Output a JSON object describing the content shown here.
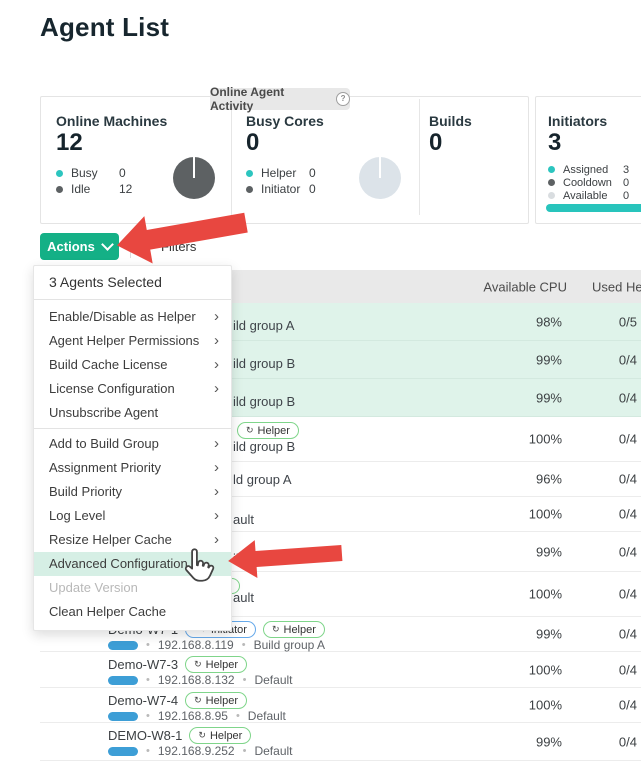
{
  "page": {
    "title": "Agent List"
  },
  "activity": {
    "tab_label": "Online Agent Activity",
    "cards": [
      {
        "title": "Online Machines",
        "value": "12",
        "legend": [
          {
            "label": "Busy",
            "value": "0",
            "color": "#2cc5bf"
          },
          {
            "label": "Idle",
            "value": "12",
            "color": "#5d6163"
          }
        ],
        "donut_color": "#5d6163"
      },
      {
        "title": "Busy Cores",
        "value": "0",
        "legend": [
          {
            "label": "Helper",
            "value": "0",
            "color": "#2cc5bf"
          },
          {
            "label": "Initiator",
            "value": "0",
            "color": "#5d6163"
          }
        ],
        "donut_color": "#dce3e9"
      },
      {
        "title": "Builds",
        "value": "0",
        "legend": []
      },
      {
        "title": "Initiators",
        "value": "3",
        "legend": [
          {
            "label": "Assigned",
            "value": "3",
            "color": "#2cc5bf"
          },
          {
            "label": "Cooldown",
            "value": "0",
            "color": "#5d6163"
          },
          {
            "label": "Available",
            "value": "0",
            "color": "#d9dde0"
          }
        ],
        "bar_color": "#28c4bc"
      }
    ]
  },
  "toolbar": {
    "actions_label": "Actions",
    "filters_label": "Filters"
  },
  "menu": {
    "header": "3 Agents Selected",
    "items": [
      {
        "label": "Enable/Disable as Helper",
        "submenu": true
      },
      {
        "label": "Agent Helper Permissions",
        "submenu": true
      },
      {
        "label": "Build Cache License",
        "submenu": true
      },
      {
        "label": "License Configuration",
        "submenu": true
      },
      {
        "label": "Unsubscribe Agent",
        "submenu": false,
        "divider_after": true
      },
      {
        "label": "Add to Build Group",
        "submenu": true
      },
      {
        "label": "Assignment Priority",
        "submenu": true
      },
      {
        "label": "Build Priority",
        "submenu": true
      },
      {
        "label": "Log Level",
        "submenu": true
      },
      {
        "label": "Resize Helper Cache",
        "submenu": true
      },
      {
        "label": "Advanced Configuration",
        "submenu": false,
        "highlighted": true
      },
      {
        "label": "Update Version",
        "submenu": false,
        "disabled": true
      },
      {
        "label": "Clean Helper Cache",
        "submenu": false
      }
    ]
  },
  "badge_types": {
    "Initiator": {
      "icon": "≡✦",
      "border": "#66a9ea"
    },
    "Helper": {
      "icon": "↻",
      "border": "#7fd58a"
    }
  },
  "table": {
    "columns": {
      "available_cpu": "Available CPU",
      "used_helpers": "Used Help"
    },
    "rows": [
      {
        "selected": true,
        "fragment": "ild group A",
        "cpu": "98%",
        "used": "0/5"
      },
      {
        "selected": true,
        "fragment": "ild group B",
        "cpu": "99%",
        "used": "0/4"
      },
      {
        "selected": true,
        "fragment": "ild group B",
        "cpu": "99%",
        "used": "0/4"
      },
      {
        "selected": false,
        "badges": [
          "Helper"
        ],
        "fragment": "ild group B",
        "cpu": "100%",
        "used": "0/4"
      },
      {
        "selected": false,
        "fragment": "ld group A",
        "cpu": "96%",
        "used": "0/4"
      },
      {
        "selected": false,
        "fragment": "ault",
        "cpu": "100%",
        "used": "0/4"
      },
      {
        "selected": false,
        "fragment": "ild group A",
        "cpu": "99%",
        "used": "0/4"
      },
      {
        "selected": false,
        "partial_badge": true,
        "fragment": "ault",
        "cpu": "100%",
        "used": "0/4"
      },
      {
        "selected": false,
        "name": "Demo-W7-1",
        "badges": [
          "Initiator",
          "Helper"
        ],
        "ip": "192.168.8.119",
        "group": "Build group A",
        "cpu": "99%",
        "used": "0/4"
      },
      {
        "selected": false,
        "name": "Demo-W7-3",
        "badges": [
          "Helper"
        ],
        "ip": "192.168.8.132",
        "group": "Default",
        "cpu": "100%",
        "used": "0/4"
      },
      {
        "selected": false,
        "name": "Demo-W7-4",
        "badges": [
          "Helper"
        ],
        "ip": "192.168.8.95",
        "group": "Default",
        "cpu": "100%",
        "used": "0/4"
      },
      {
        "selected": false,
        "name": "DEMO-W8-1",
        "badges": [
          "Helper"
        ],
        "ip": "192.168.9.252",
        "group": "Default",
        "cpu": "99%",
        "used": "0/4"
      }
    ]
  },
  "colors": {
    "accent_green": "#14b086",
    "annotation_red": "#e84740",
    "selected_row": "#dff3ea",
    "menu_highlight": "#d6efe5",
    "core_pill_blue": "#3d9ed6"
  }
}
